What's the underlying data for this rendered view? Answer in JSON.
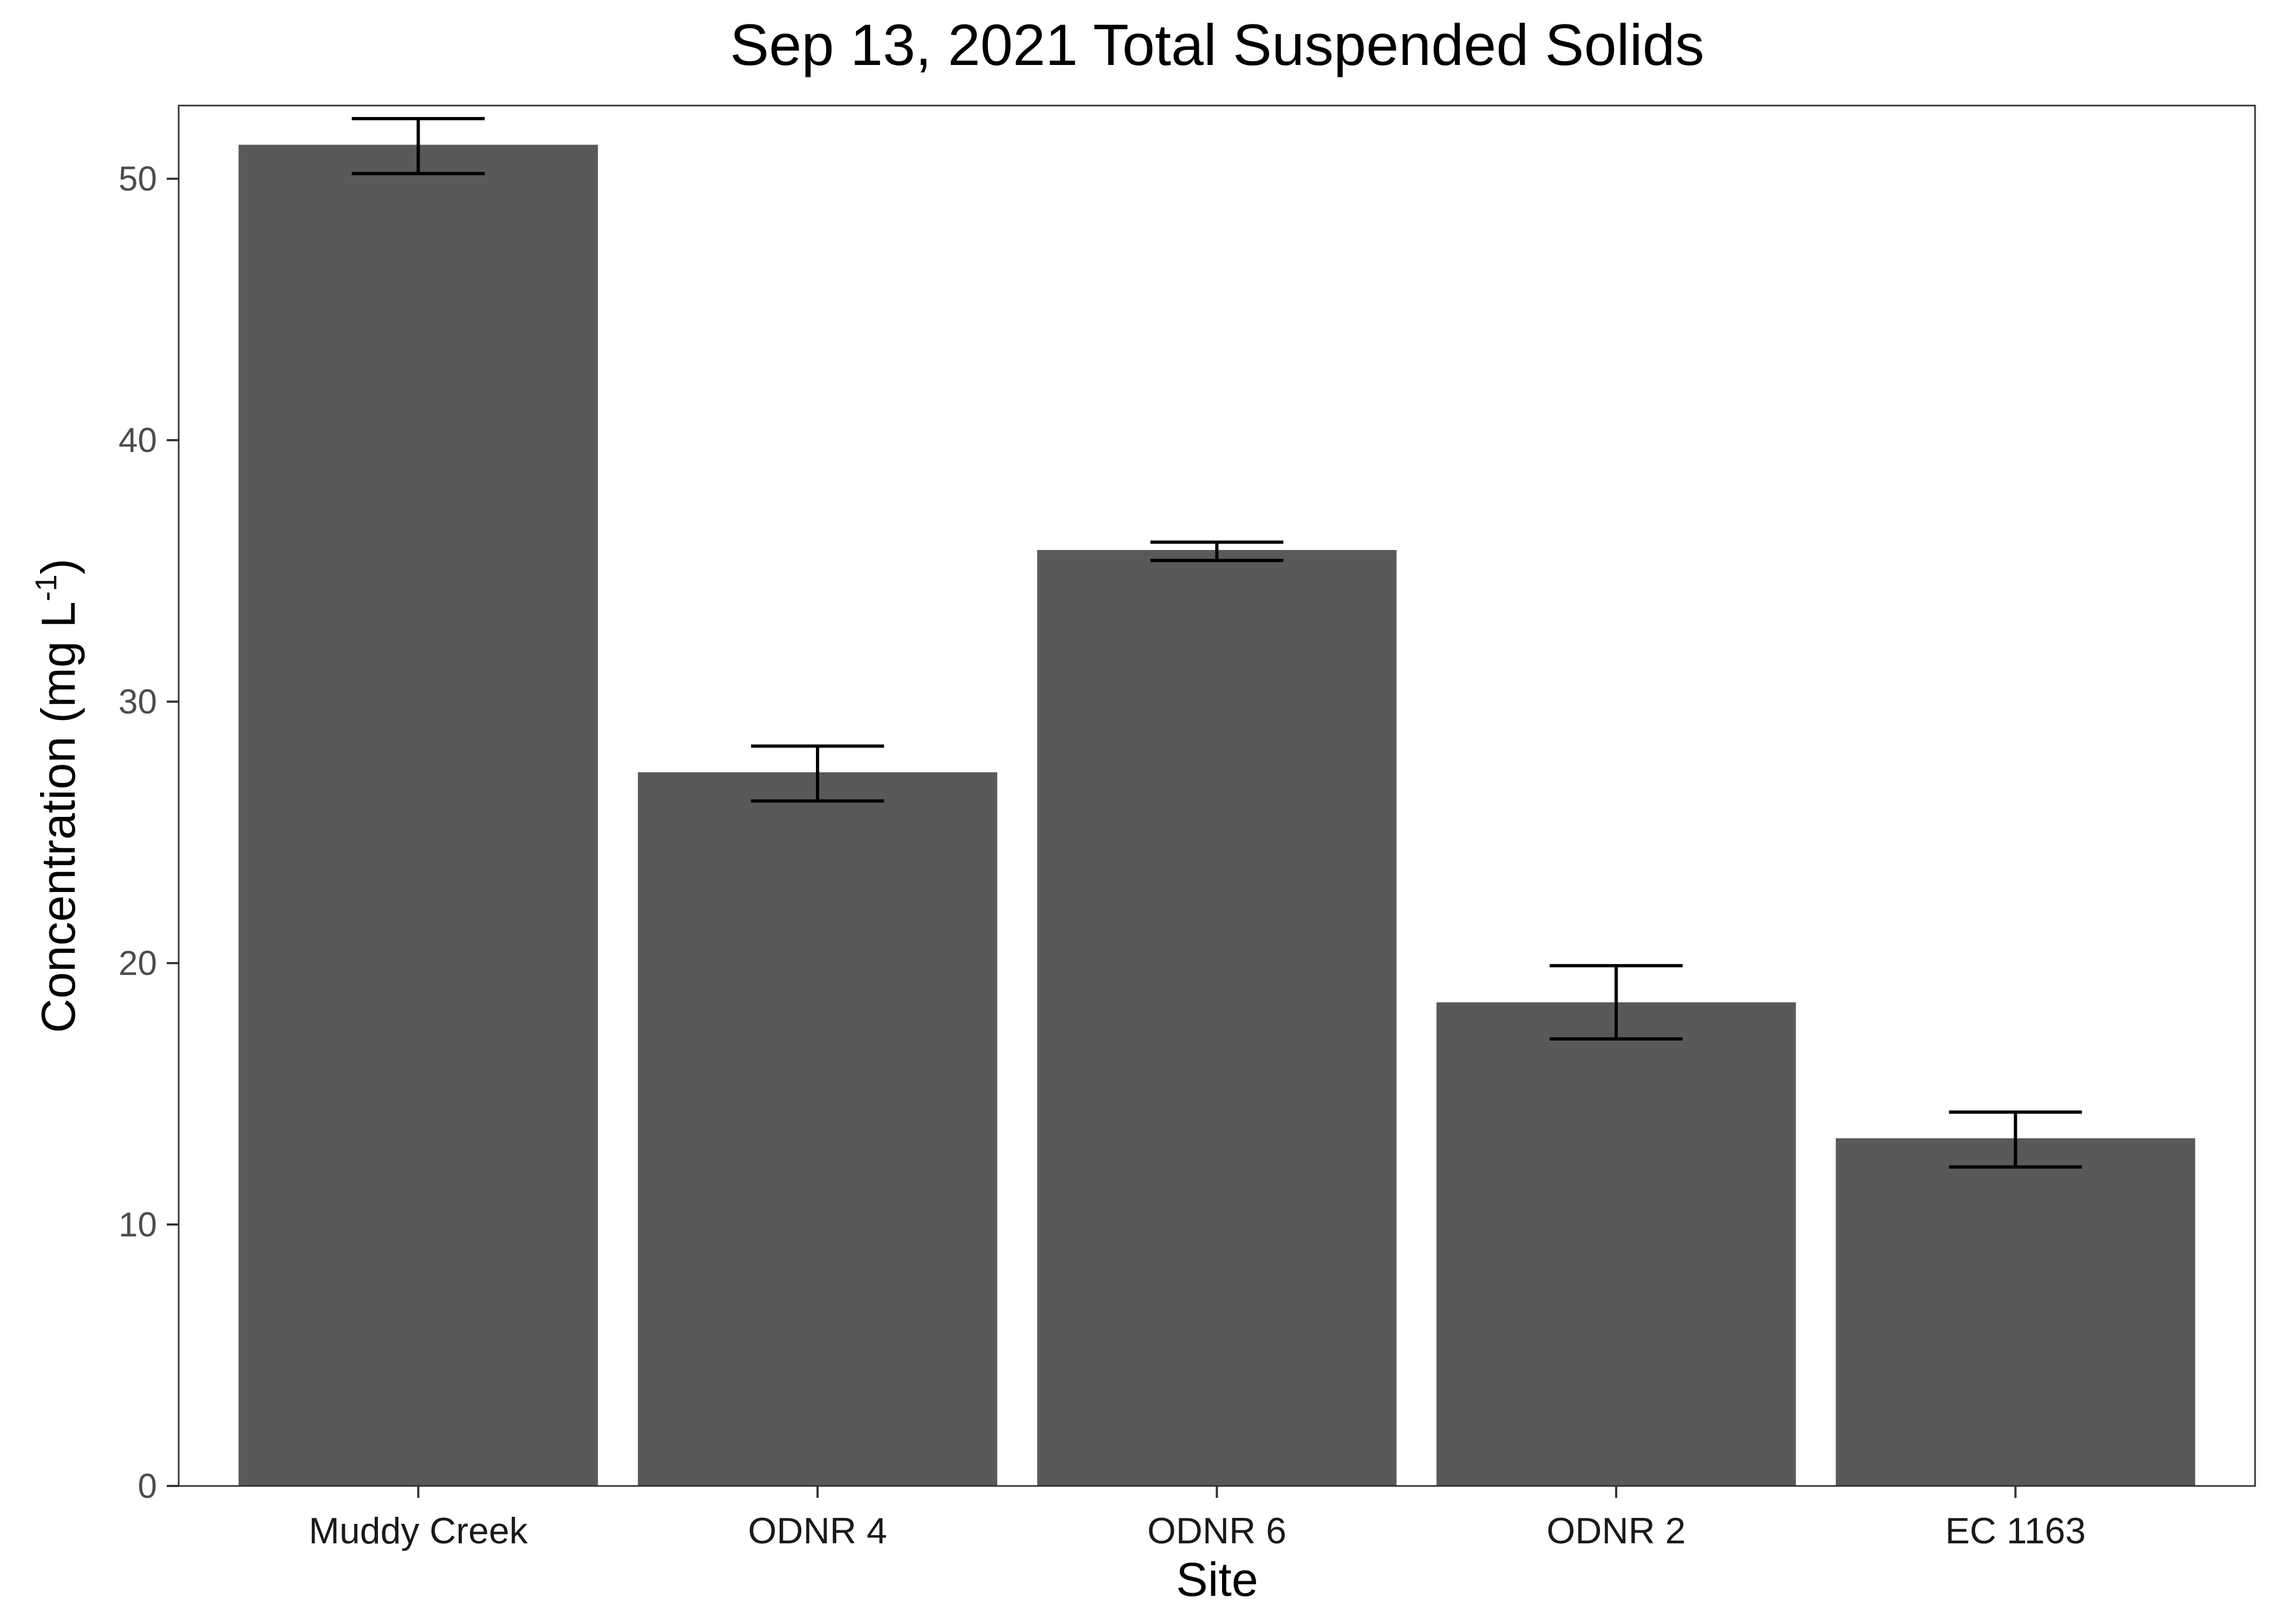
{
  "chart_data": {
    "type": "bar",
    "title": "Sep 13, 2021 Total Suspended Solids",
    "xlabel": "Site",
    "ylabel": {
      "prefix": "Concentration (mg L",
      "superscript": "-1",
      "suffix": ")"
    },
    "categories": [
      "Muddy Creek",
      "ODNR 4",
      "ODNR 6",
      "ODNR 2",
      "EC 1163"
    ],
    "values": [
      51.3,
      27.3,
      35.8,
      18.5,
      13.3
    ],
    "error_low": [
      50.2,
      26.2,
      35.4,
      17.1,
      12.2
    ],
    "error_high": [
      52.3,
      28.3,
      36.1,
      19.9,
      14.3
    ],
    "ylim": [
      0,
      52.8
    ],
    "yticks": [
      0,
      10,
      20,
      30,
      40,
      50
    ],
    "bar_color": "#595959",
    "errorbar_color": "#000000",
    "frame_color": "#333333",
    "background": "#ffffff",
    "grid": false,
    "legend": "none"
  }
}
